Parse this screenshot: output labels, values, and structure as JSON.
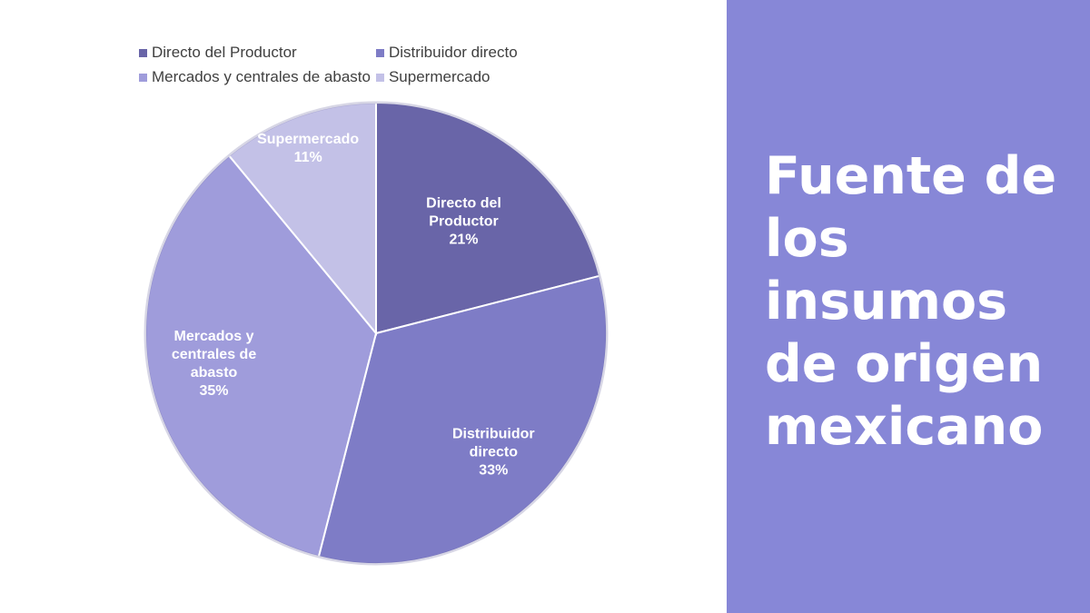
{
  "slide": {
    "title": "Fuente de los insumos de origen mexicano",
    "panel_color": "#8787d7"
  },
  "chart_data": {
    "type": "pie",
    "title": "",
    "legend_position": "top",
    "data_labels": true,
    "slices": [
      {
        "label": "Directo del Productor",
        "label_lines": [
          "Directo del",
          "Productor"
        ],
        "percent_label": "21%",
        "value": 21,
        "color": "#6965a8"
      },
      {
        "label": "Distribuidor directo",
        "label_lines": [
          "Distribuidor",
          "directo"
        ],
        "percent_label": "33%",
        "value": 33,
        "color": "#7e7cc6"
      },
      {
        "label": "Mercados y centrales de abasto",
        "label_lines": [
          "Mercados y",
          "centrales de",
          "abasto"
        ],
        "percent_label": "35%",
        "value": 35,
        "color": "#9f9cdb"
      },
      {
        "label": "Supermercado",
        "label_lines": [
          "Supermercado"
        ],
        "percent_label": "11%",
        "value": 11,
        "color": "#c3c1e7"
      }
    ]
  }
}
